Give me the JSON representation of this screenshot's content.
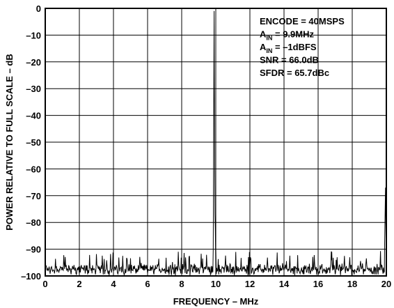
{
  "chart_data": {
    "type": "line",
    "title": "",
    "xlabel": "FREQUENCY – MHz",
    "ylabel": "POWER RELATIVE TO FULL SCALE – dB",
    "xlim": [
      0,
      20
    ],
    "ylim": [
      -100,
      0
    ],
    "grid": true,
    "x_ticks": [
      0,
      2,
      4,
      6,
      8,
      10,
      12,
      14,
      16,
      18,
      20
    ],
    "x_tick_labels": [
      "0",
      "2",
      "4",
      "6",
      "8",
      "10",
      "12",
      "14",
      "16",
      "18",
      "20"
    ],
    "y_ticks": [
      0,
      -10,
      -20,
      -30,
      -40,
      -50,
      -60,
      -70,
      -80,
      -90,
      -100
    ],
    "y_tick_labels": [
      "0",
      "–10",
      "–20",
      "–30",
      "–40",
      "–50",
      "–60",
      "–70",
      "–80",
      "–90",
      "–100"
    ],
    "annotations": [
      {
        "main": "ENCODE = 40MSPS",
        "sub": "",
        "tail": ""
      },
      {
        "main": "A",
        "sub": "IN",
        "tail": " = 9.9MHz"
      },
      {
        "main": "A",
        "sub": "IN",
        "tail": " = –1dBFS"
      },
      {
        "main": "SNR = 66.0dB",
        "sub": "",
        "tail": ""
      },
      {
        "main": "SFDR = 65.7dBc",
        "sub": "",
        "tail": ""
      }
    ],
    "noise_floor_db": -98,
    "series": [
      {
        "x": [
          0,
          0.1,
          0.2,
          0.3,
          0.4,
          0.5,
          0.8,
          1.2,
          1.6,
          2.0,
          2.5,
          3.0,
          3.4,
          3.8,
          4.2,
          4.6,
          5.0,
          5.5,
          6.0,
          6.5,
          7.0,
          7.5,
          8.0,
          8.5,
          9.0,
          9.4,
          9.7,
          9.85,
          9.9,
          9.95,
          10.0,
          10.05,
          10.1,
          10.3,
          10.6,
          11.0,
          11.5,
          12.0,
          12.5,
          13.0,
          13.5,
          14.0,
          14.5,
          15.0,
          15.5,
          16.0,
          16.5,
          16.8,
          17.2,
          17.6,
          18.0,
          18.5,
          19.0,
          19.5,
          19.8,
          19.9,
          19.95,
          20.0
        ],
        "y": [
          -91,
          -95,
          -97,
          -96,
          -92,
          -96,
          -97,
          -98,
          -96,
          -98,
          -97,
          -98,
          -96,
          -97,
          -99,
          -99,
          -98,
          -98,
          -97,
          -98,
          -98,
          -97,
          -97,
          -98,
          -98,
          -97,
          -96,
          -90,
          -1,
          -77,
          -90,
          -96,
          -97,
          -96,
          -97,
          -97,
          -98,
          -97,
          -97,
          -98,
          -98,
          -97,
          -98,
          -97,
          -98,
          -96,
          -96,
          -91,
          -96,
          -97,
          -96,
          -96,
          -96,
          -96,
          -94,
          -88,
          -67,
          -100
        ]
      }
    ]
  }
}
